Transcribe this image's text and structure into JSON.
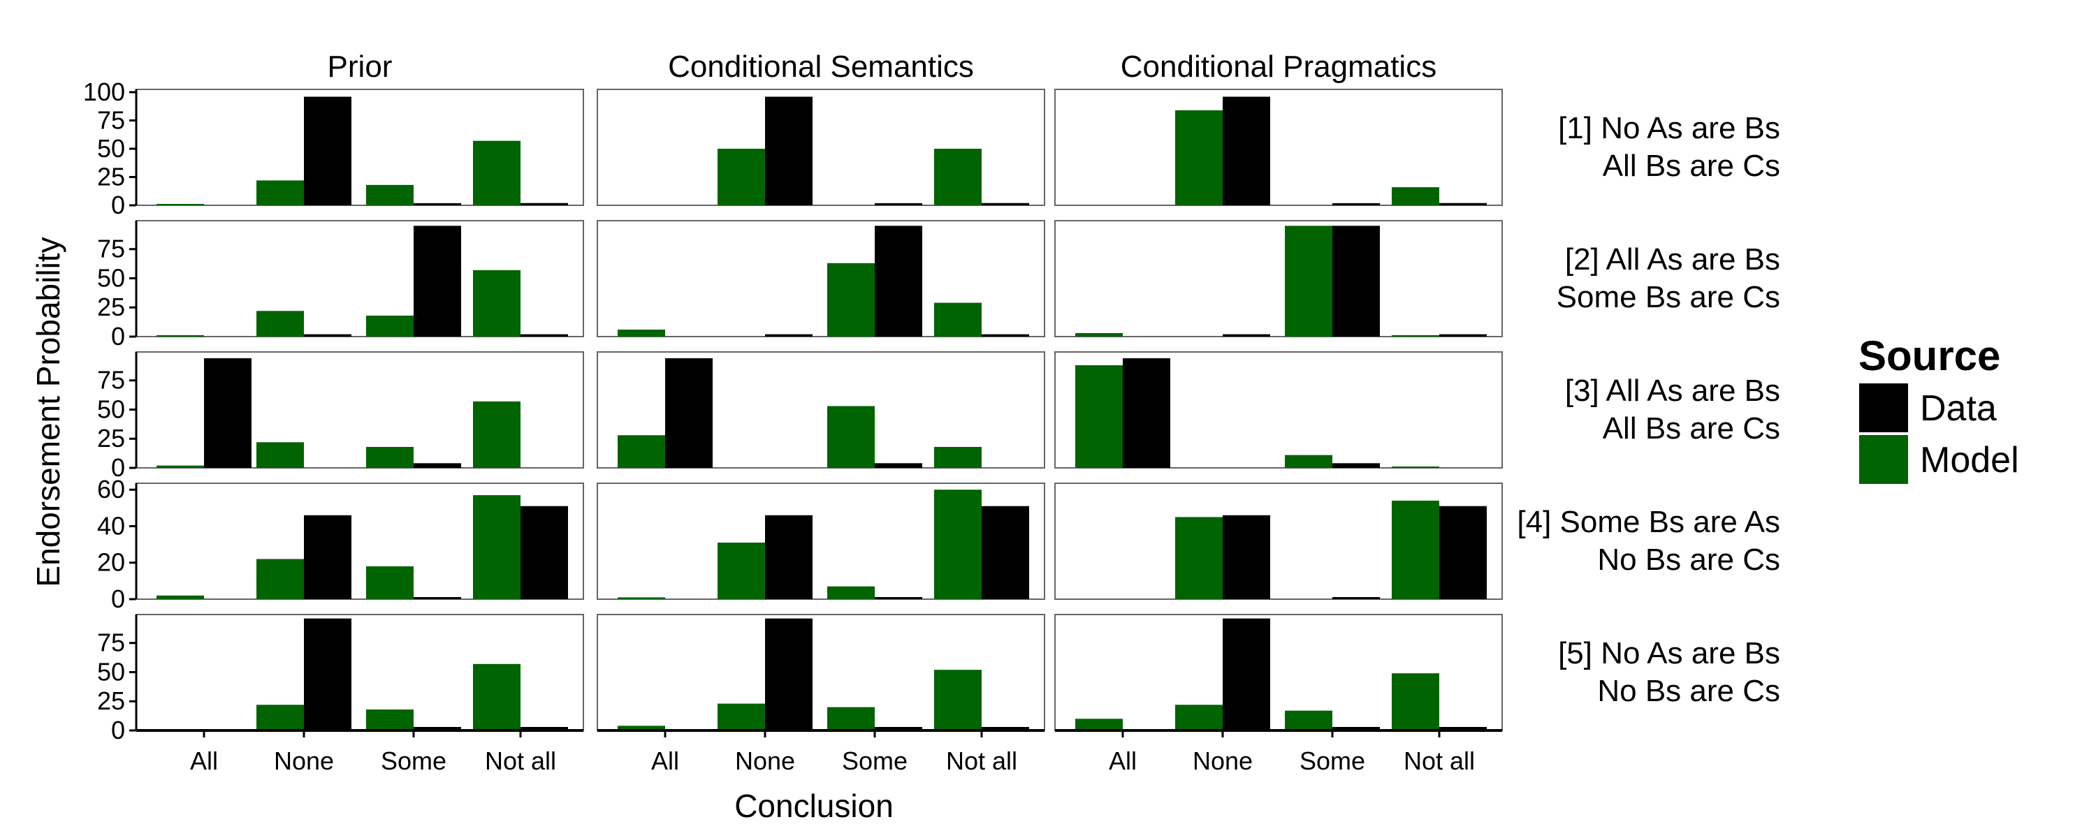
{
  "chart_data": {
    "type": "bar",
    "xlabel": "Conclusion",
    "ylabel": "Endorsement Probability",
    "categories": [
      "All",
      "None",
      "Some",
      "Not all"
    ],
    "columns": [
      "Prior",
      "Conditional Semantics",
      "Conditional Pragmatics"
    ],
    "legend": {
      "title": "Source",
      "placement": "right",
      "items": [
        {
          "name": "Data",
          "color": "#000000"
        },
        {
          "name": "Model",
          "color": "#006400"
        }
      ]
    },
    "rows": [
      {
        "label_lines": [
          "[1] No As are Bs",
          "All Bs are Cs"
        ],
        "ylim": [
          0,
          100
        ],
        "yticks": [
          "0",
          "25",
          "50",
          "75",
          "100"
        ],
        "ytick_values": [
          0,
          25,
          50,
          75,
          100
        ],
        "panels": [
          {
            "model": [
              1,
              22,
              18,
              57
            ],
            "data": [
              0,
              96,
              1,
              2
            ]
          },
          {
            "model": [
              0,
              50,
              0,
              50
            ],
            "data": [
              0,
              96,
              1,
              2
            ]
          },
          {
            "model": [
              0,
              84,
              0,
              16
            ],
            "data": [
              0,
              96,
              1,
              2
            ]
          }
        ]
      },
      {
        "label_lines": [
          "[2] All As are Bs",
          "Some Bs are Cs"
        ],
        "ylim": [
          0,
          97
        ],
        "yticks": [
          "0",
          "25",
          "50",
          "75"
        ],
        "ytick_values": [
          0,
          25,
          50,
          75
        ],
        "panels": [
          {
            "model": [
              1,
              22,
              18,
              57
            ],
            "data": [
              0,
              2,
              95,
              2
            ]
          },
          {
            "model": [
              6,
              0,
              63,
              29
            ],
            "data": [
              0,
              2,
              95,
              2
            ]
          },
          {
            "model": [
              3,
              0,
              95,
              1
            ],
            "data": [
              0,
              2,
              95,
              2
            ]
          }
        ]
      },
      {
        "label_lines": [
          "[3] All As are Bs",
          "All Bs are Cs"
        ],
        "ylim": [
          0,
          97
        ],
        "yticks": [
          "0",
          "25",
          "50",
          "75"
        ],
        "ytick_values": [
          0,
          25,
          50,
          75
        ],
        "panels": [
          {
            "model": [
              2,
              22,
              18,
              57
            ],
            "data": [
              94,
              0,
              4,
              0
            ]
          },
          {
            "model": [
              28,
              0,
              53,
              18
            ],
            "data": [
              94,
              0,
              4,
              0
            ]
          },
          {
            "model": [
              88,
              0,
              11,
              1
            ],
            "data": [
              94,
              0,
              4,
              0
            ]
          }
        ]
      },
      {
        "label_lines": [
          "[4] Some Bs are As",
          "No Bs are Cs"
        ],
        "ylim": [
          0,
          62
        ],
        "yticks": [
          "0",
          "20",
          "40",
          "60"
        ],
        "ytick_values": [
          0,
          20,
          40,
          60
        ],
        "panels": [
          {
            "model": [
              2,
              22,
              18,
              57
            ],
            "data": [
              0,
              46,
              1,
              51
            ]
          },
          {
            "model": [
              1,
              31,
              7,
              60
            ],
            "data": [
              0,
              46,
              1,
              51
            ]
          },
          {
            "model": [
              0,
              45,
              0,
              54
            ],
            "data": [
              0,
              46,
              1,
              51
            ]
          }
        ]
      },
      {
        "label_lines": [
          "[5] No As are Bs",
          "No Bs are Cs"
        ],
        "ylim": [
          0,
          97
        ],
        "yticks": [
          "0",
          "25",
          "50",
          "75"
        ],
        "ytick_values": [
          0,
          25,
          50,
          75
        ],
        "panels": [
          {
            "model": [
              1,
              22,
              18,
              57
            ],
            "data": [
              0,
              96,
              3,
              3
            ]
          },
          {
            "model": [
              4,
              23,
              20,
              52
            ],
            "data": [
              0,
              96,
              3,
              3
            ]
          },
          {
            "model": [
              10,
              22,
              17,
              49
            ],
            "data": [
              0,
              96,
              3,
              3
            ]
          }
        ]
      }
    ]
  }
}
